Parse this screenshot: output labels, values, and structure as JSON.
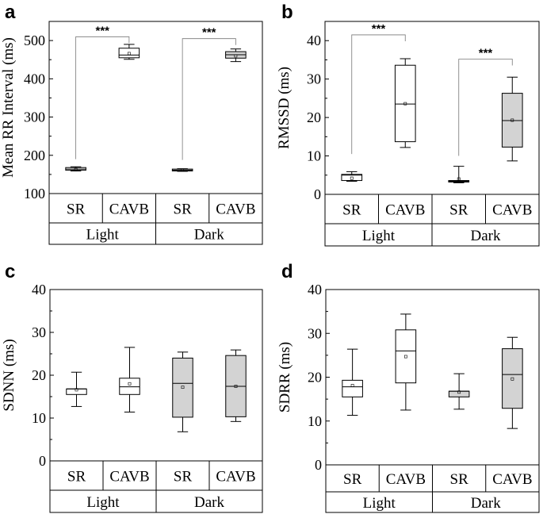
{
  "chart_data": [
    {
      "panel": "a",
      "type": "box",
      "ylabel": "Mean RR Interval (ms)",
      "ylim": [
        100,
        550
      ],
      "yticks": [
        100,
        200,
        300,
        400,
        500
      ],
      "categories": [
        "SR",
        "CAVB",
        "SR",
        "CAVB"
      ],
      "groups": [
        "Light",
        "Dark"
      ],
      "boxes": [
        {
          "group": "Light",
          "category": "SR",
          "fill": "#ffffff",
          "min": 159,
          "q1": 161,
          "median": 164,
          "q3": 168,
          "max": 170,
          "mean": 163
        },
        {
          "group": "Light",
          "category": "CAVB",
          "fill": "#ffffff",
          "min": 451,
          "q1": 455,
          "median": 462,
          "q3": 480,
          "max": 490,
          "mean": 466
        },
        {
          "group": "Dark",
          "category": "SR",
          "fill": "#d3d3d3",
          "min": 158,
          "q1": 159,
          "median": 161,
          "q3": 164,
          "max": 165,
          "mean": 161
        },
        {
          "group": "Dark",
          "category": "CAVB",
          "fill": "#d3d3d3",
          "min": 445,
          "q1": 454,
          "median": 463,
          "q3": 471,
          "max": 478,
          "mean": 460
        }
      ],
      "significance": [
        {
          "from": 0,
          "to": 1,
          "label": "***",
          "y": 510,
          "start": 190
        },
        {
          "from": 2,
          "to": 3,
          "label": "***",
          "y": 505,
          "start": 188
        }
      ]
    },
    {
      "panel": "b",
      "type": "box",
      "ylabel": "RMSSD (ms)",
      "ylim": [
        0,
        45
      ],
      "yticks": [
        0,
        10,
        20,
        30,
        40
      ],
      "categories": [
        "SR",
        "CAVB",
        "SR",
        "CAVB"
      ],
      "groups": [
        "Light",
        "Dark"
      ],
      "boxes": [
        {
          "group": "Light",
          "category": "SR",
          "fill": "#ffffff",
          "min": 3.4,
          "q1": 3.6,
          "median": 5,
          "q3": 5.2,
          "max": 5.9,
          "mean": 4.2
        },
        {
          "group": "Light",
          "category": "CAVB",
          "fill": "#ffffff",
          "min": 12.2,
          "q1": 13.7,
          "median": 23.5,
          "q3": 33.6,
          "max": 35.3,
          "mean": 23.6
        },
        {
          "group": "Dark",
          "category": "SR",
          "fill": "#d3d3d3",
          "min": 3,
          "q1": 3.2,
          "median": 3.4,
          "q3": 3.6,
          "max": 7.3,
          "mean": 4
        },
        {
          "group": "Dark",
          "category": "CAVB",
          "fill": "#d3d3d3",
          "min": 8.7,
          "q1": 12.3,
          "median": 19.2,
          "q3": 26.3,
          "max": 30.5,
          "mean": 19.3
        }
      ],
      "significance": [
        {
          "from": 0,
          "to": 1,
          "label": "***",
          "y": 41.5,
          "start": 10.5
        },
        {
          "from": 2,
          "to": 3,
          "label": "***",
          "y": 35.2,
          "start": 10
        }
      ]
    },
    {
      "panel": "c",
      "type": "box",
      "ylabel": "SDNN (ms)",
      "ylim": [
        0,
        40
      ],
      "yticks": [
        0,
        10,
        20,
        30,
        40
      ],
      "categories": [
        "SR",
        "CAVB",
        "SR",
        "CAVB"
      ],
      "groups": [
        "Light",
        "Dark"
      ],
      "boxes": [
        {
          "group": "Light",
          "category": "SR",
          "fill": "#ffffff",
          "min": 12.7,
          "q1": 15.5,
          "median": 16.8,
          "q3": 16.8,
          "max": 20.7,
          "mean": 16.6
        },
        {
          "group": "Light",
          "category": "CAVB",
          "fill": "#ffffff",
          "min": 11.4,
          "q1": 15.5,
          "median": 17.3,
          "q3": 19.3,
          "max": 26.5,
          "mean": 18
        },
        {
          "group": "Dark",
          "category": "SR",
          "fill": "#d3d3d3",
          "min": 6.8,
          "q1": 10.2,
          "median": 18.1,
          "q3": 24,
          "max": 25.4,
          "mean": 17.2
        },
        {
          "group": "Dark",
          "category": "CAVB",
          "fill": "#d3d3d3",
          "min": 9.2,
          "q1": 10.3,
          "median": 17.4,
          "q3": 24.6,
          "max": 25.9,
          "mean": 17.4
        }
      ],
      "significance": []
    },
    {
      "panel": "d",
      "type": "box",
      "ylabel": "SDRR (ms)",
      "ylim": [
        0,
        40
      ],
      "yticks": [
        0,
        10,
        20,
        30,
        40
      ],
      "categories": [
        "SR",
        "CAVB",
        "SR",
        "CAVB"
      ],
      "groups": [
        "Light",
        "Dark"
      ],
      "boxes": [
        {
          "group": "Light",
          "category": "SR",
          "fill": "#ffffff",
          "min": 11.3,
          "q1": 15.5,
          "median": 17.8,
          "q3": 19.3,
          "max": 26.4,
          "mean": 18.1
        },
        {
          "group": "Light",
          "category": "CAVB",
          "fill": "#ffffff",
          "min": 12.5,
          "q1": 18.7,
          "median": 26,
          "q3": 30.8,
          "max": 34.4,
          "mean": 24.7
        },
        {
          "group": "Dark",
          "category": "SR",
          "fill": "#d3d3d3",
          "min": 12.7,
          "q1": 15.5,
          "median": 16.8,
          "q3": 16.8,
          "max": 20.8,
          "mean": 16.6
        },
        {
          "group": "Dark",
          "category": "CAVB",
          "fill": "#d3d3d3",
          "min": 8.3,
          "q1": 12.9,
          "median": 20.6,
          "q3": 26.5,
          "max": 29.1,
          "mean": 19.6
        }
      ],
      "significance": []
    }
  ]
}
